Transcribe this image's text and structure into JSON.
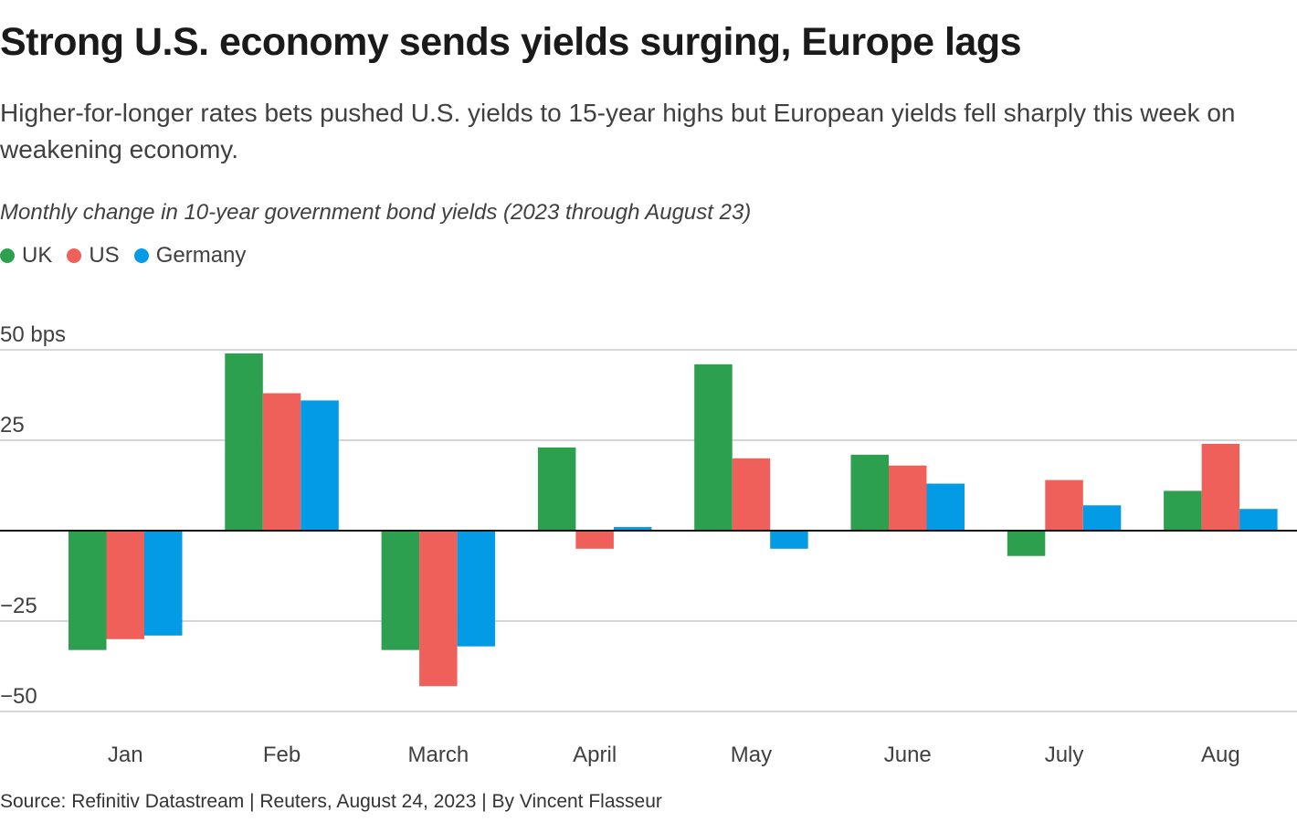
{
  "header": {
    "title": "Strong U.S. economy sends yields surging, Europe lags",
    "subtitle": "Higher-for-longer rates bets pushed U.S. yields to 15-year highs but European yields fell sharply this week on weakening economy.",
    "chart_description": "Monthly change in 10-year government bond yields (2023 through August 23)"
  },
  "legend": [
    {
      "label": "UK",
      "color": "#2ca04f"
    },
    {
      "label": "US",
      "color": "#f0605a"
    },
    {
      "label": "Germany",
      "color": "#039be5"
    }
  ],
  "footer": {
    "source": "Source: Refinitiv Datastream | Reuters, August 24, 2023 | By Vincent Flasseur"
  },
  "chart_data": {
    "type": "bar",
    "title": "Strong U.S. economy sends yields surging, Europe lags",
    "xlabel": "",
    "ylabel": "bps",
    "categories": [
      "Jan",
      "Feb",
      "March",
      "April",
      "May",
      "June",
      "July",
      "Aug"
    ],
    "series": [
      {
        "name": "UK",
        "color": "#2ca04f",
        "values": [
          -33,
          49,
          -33,
          23,
          46,
          21,
          -7,
          11
        ]
      },
      {
        "name": "US",
        "color": "#f0605a",
        "values": [
          -30,
          38,
          -43,
          -5,
          20,
          18,
          14,
          24
        ]
      },
      {
        "name": "Germany",
        "color": "#039be5",
        "values": [
          -29,
          36,
          -32,
          1,
          -5,
          13,
          7,
          6
        ]
      }
    ],
    "ylim": [
      -50,
      50
    ],
    "yticks": [
      50,
      25,
      -25,
      -50
    ],
    "ytick_labels": [
      "50 bps",
      "25",
      "−25",
      "−50"
    ],
    "grid": true,
    "legend_position": "top-left"
  }
}
